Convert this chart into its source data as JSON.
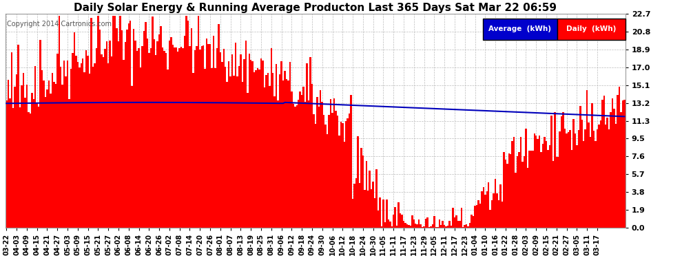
{
  "title": "Daily Solar Energy & Running Average Producton Last 365 Days Sat Mar 22 06:59",
  "copyright_text": "Copyright 2014 Cartronics.com",
  "bar_color": "#ff0000",
  "avg_line_color": "#0000bb",
  "background_color": "#ffffff",
  "grid_color": "#bbbbbb",
  "ylim": [
    0.0,
    22.7
  ],
  "yticks": [
    0.0,
    1.9,
    3.8,
    5.7,
    7.6,
    9.5,
    11.3,
    13.2,
    15.1,
    17.0,
    18.9,
    20.8,
    22.7
  ],
  "legend_avg_label": "Average  (kWh)",
  "legend_daily_label": "Daily  (kWh)",
  "legend_avg_bg": "#0000cc",
  "legend_daily_bg": "#ff0000",
  "n_days": 365,
  "seed": 42,
  "xtick_labels": [
    "03-22",
    "04-03",
    "04-09",
    "04-15",
    "04-21",
    "04-27",
    "05-03",
    "05-09",
    "05-15",
    "05-21",
    "05-27",
    "06-02",
    "06-08",
    "06-14",
    "06-20",
    "06-26",
    "07-02",
    "07-08",
    "07-14",
    "07-20",
    "07-26",
    "08-01",
    "08-07",
    "08-13",
    "08-19",
    "08-25",
    "08-31",
    "09-06",
    "09-12",
    "09-18",
    "09-24",
    "09-30",
    "10-06",
    "10-12",
    "10-18",
    "10-24",
    "10-30",
    "11-05",
    "11-11",
    "11-17",
    "11-23",
    "11-29",
    "12-05",
    "12-11",
    "12-17",
    "12-23",
    "01-04",
    "01-10",
    "01-16",
    "01-22",
    "01-28",
    "02-03",
    "02-09",
    "02-15",
    "02-21",
    "02-27",
    "03-05",
    "03-11",
    "03-17"
  ]
}
